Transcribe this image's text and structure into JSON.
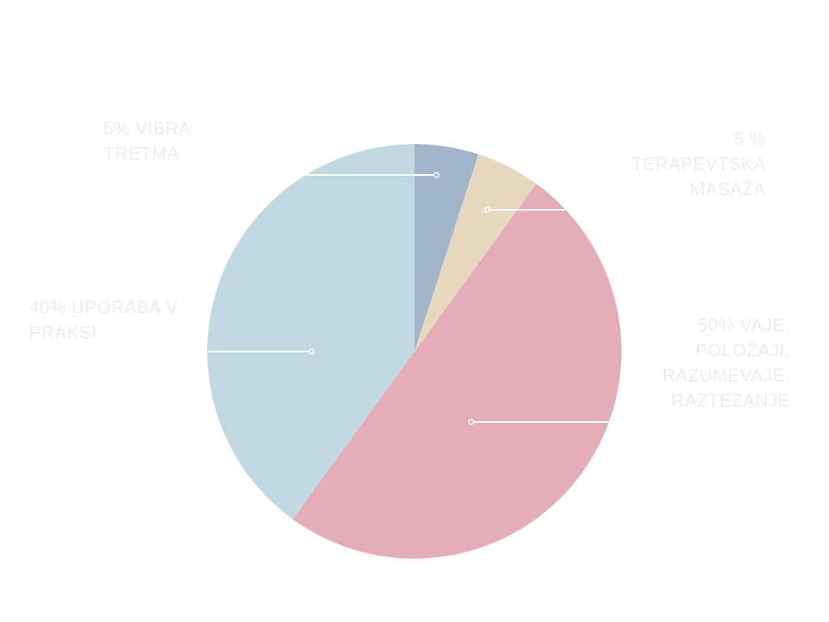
{
  "chart_data": {
    "type": "pie",
    "slices": [
      {
        "label": "5% VIBRA TRETMA",
        "value": 5,
        "color": "#a2b6cb"
      },
      {
        "label": "5 % TERAPEVTSKA MASAŽA",
        "value": 5,
        "color": "#e7d9c0"
      },
      {
        "label": "50% VAJE, POLOŽAJI, RAZUMEVAJE, RAZTEZANJE",
        "value": 50,
        "color": "#e5adb7"
      },
      {
        "label": "40% UPORABA V PRAKSI",
        "value": 40,
        "color": "#c1dae1"
      }
    ],
    "start_angle_deg": 0,
    "direction": "clockwise",
    "legend": "none",
    "label_color": "#ededed",
    "leader_color": "#ffffff"
  }
}
